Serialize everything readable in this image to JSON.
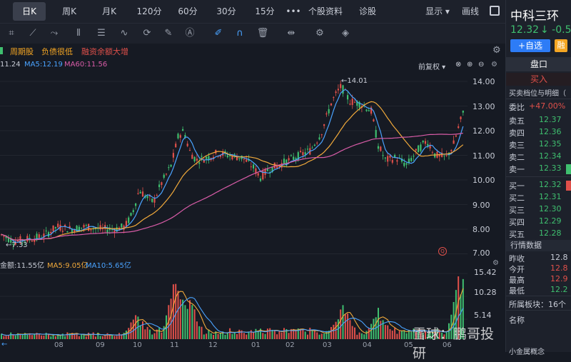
{
  "tabs": [
    {
      "label": "日K",
      "active": true
    },
    {
      "label": "周K"
    },
    {
      "label": "月K"
    },
    {
      "label": "120分"
    },
    {
      "label": "60分"
    },
    {
      "label": "30分"
    },
    {
      "label": "15分"
    },
    {
      "label": "•••"
    },
    {
      "label": "个股资料"
    },
    {
      "label": "诊股"
    },
    {
      "label": "显示 ▾"
    },
    {
      "label": "画线"
    }
  ],
  "tools": [
    "crop-icon",
    "fan-icon",
    "zigzag-icon",
    "bars-icon",
    "table-icon",
    "wave-icon",
    "refresh-icon",
    "ruler-icon",
    "text-icon",
    "pen-icon",
    "magnet-icon",
    "trash-icon",
    "arrows-icon",
    "gear-icon",
    "layers-icon"
  ],
  "tags": [
    {
      "label": "周期股",
      "color": "#f5a623"
    },
    {
      "label": "负债很低",
      "color": "#f5a623"
    },
    {
      "label": "融资余额大增",
      "color": "#e0504a"
    }
  ],
  "indicators": {
    "ma1": "11.24",
    "ma5": "MA5:12.19",
    "ma60": "MA60:11.56",
    "fq": "前复权 ▾"
  },
  "price_axis": [
    "14.00",
    "13.00",
    "12.00",
    "11.00",
    "10.00",
    "9.00",
    "8.00",
    "7.00"
  ],
  "annotations": {
    "high": "←14.01",
    "low": "←7.33"
  },
  "volume": {
    "amount": "金额:11.55亿",
    "ma5": "MA5:9.05亿",
    "ma10": "MA10:5.65亿",
    "axis": [
      "15.42",
      "10.28",
      "5.14"
    ]
  },
  "months": [
    "08",
    "09",
    "10",
    "11",
    "12",
    "01",
    "02",
    "03",
    "04",
    "05",
    "06"
  ],
  "watermark": "雪球：鹏哥投研",
  "stock": {
    "name": "中科三环",
    "price": "12.32",
    "change": "↓ -0.5",
    "add_label": "+自选",
    "rong": "融"
  },
  "panel": {
    "tab": "盘口",
    "buy_label": "买入",
    "detail_label": "买卖档位与明细（",
    "weibi_label": "委比",
    "weibi": "+47.00%",
    "asks": [
      {
        "label": "卖五",
        "price": "12.37"
      },
      {
        "label": "卖四",
        "price": "12.36"
      },
      {
        "label": "卖三",
        "price": "12.35"
      },
      {
        "label": "卖二",
        "price": "12.34"
      },
      {
        "label": "卖一",
        "price": "12.33"
      }
    ],
    "bids": [
      {
        "label": "买一",
        "price": "12.32"
      },
      {
        "label": "买二",
        "price": "12.31"
      },
      {
        "label": "买三",
        "price": "12.30"
      },
      {
        "label": "买四",
        "price": "12.29"
      },
      {
        "label": "买五",
        "price": "12.28"
      }
    ],
    "quote_title": "行情数据",
    "quotes": [
      {
        "label": "昨收",
        "value": "12.8"
      },
      {
        "label": "今开",
        "value": "12.8"
      },
      {
        "label": "最高",
        "value": "12.9"
      },
      {
        "label": "最低",
        "value": "12.2"
      }
    ],
    "sector": "所属板块：16个",
    "name_label": "名称",
    "footer": "小金属概念"
  },
  "colors": {
    "up": "#e0504a",
    "down": "#3fbf6f",
    "accent": "#2d7cf6",
    "ma5": "#f0a93b",
    "ma10": "#4aa3ff",
    "ma60": "#d95ca8"
  }
}
